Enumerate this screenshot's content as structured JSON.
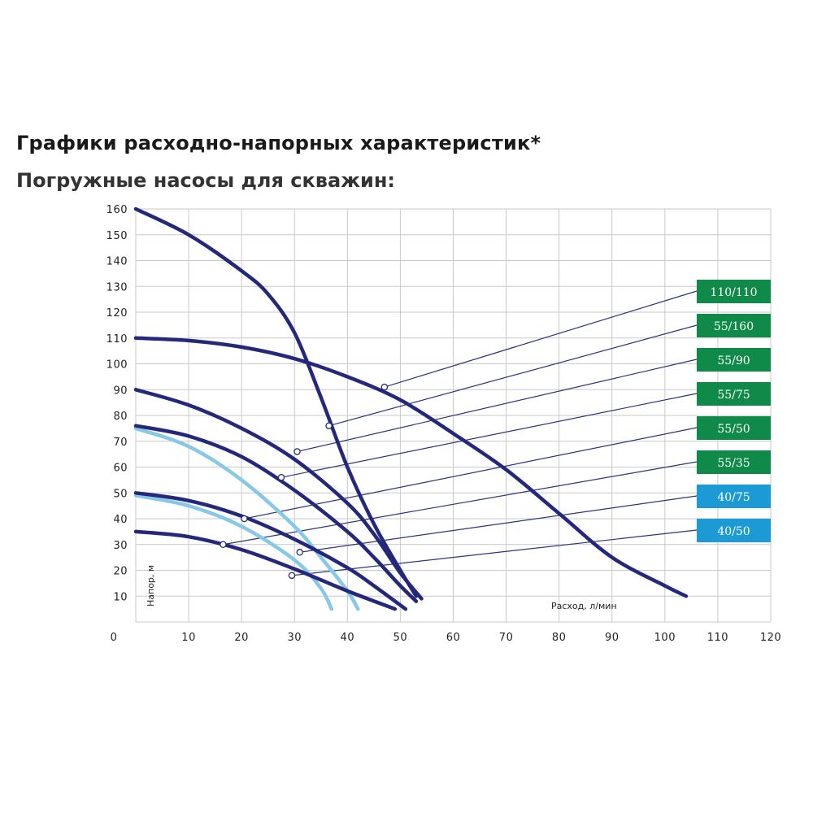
{
  "title": "Графики расходно-напорных характеристик*",
  "subtitle": "Погружные насосы для скважин:",
  "chart_data": {
    "type": "line",
    "xlabel": "Расход, л/мин",
    "ylabel": "Напор, м",
    "xlim": [
      0,
      120
    ],
    "ylim": [
      0,
      160
    ],
    "x_ticks": [
      10,
      20,
      30,
      40,
      50,
      60,
      70,
      80,
      90,
      100,
      110,
      120
    ],
    "y_ticks": [
      10,
      20,
      30,
      40,
      50,
      60,
      70,
      80,
      90,
      100,
      110,
      120,
      130,
      140,
      150,
      160
    ],
    "origin_label": "0",
    "grid": true,
    "colors": {
      "dark": "#24287a",
      "light": "#87c8e6",
      "badge_green": "#108a48",
      "badge_blue": "#1c9ad6",
      "grid": "#c9c9c9",
      "leader": "#2a3480"
    },
    "series": [
      {
        "name": "110/110",
        "color": "dark",
        "badge_color": "badge_green",
        "marker": [
          47,
          91
        ],
        "points": [
          [
            0,
            110
          ],
          [
            10,
            109
          ],
          [
            20,
            106.5
          ],
          [
            30,
            102
          ],
          [
            40,
            95
          ],
          [
            50,
            86
          ],
          [
            60,
            73
          ],
          [
            70,
            59
          ],
          [
            80,
            42
          ],
          [
            90,
            25
          ],
          [
            100,
            14
          ],
          [
            104,
            10
          ]
        ]
      },
      {
        "name": "55/160",
        "color": "dark",
        "badge_color": "badge_green",
        "marker": [
          36.5,
          76
        ],
        "points": [
          [
            0,
            160
          ],
          [
            10,
            150
          ],
          [
            20,
            136
          ],
          [
            25,
            127
          ],
          [
            30,
            112
          ],
          [
            35,
            87
          ],
          [
            40,
            60
          ],
          [
            45,
            38
          ],
          [
            50,
            20
          ],
          [
            53,
            10
          ]
        ]
      },
      {
        "name": "55/90",
        "color": "dark",
        "badge_color": "badge_green",
        "marker": [
          30.5,
          66
        ],
        "points": [
          [
            0,
            90
          ],
          [
            10,
            84
          ],
          [
            20,
            75
          ],
          [
            30,
            63
          ],
          [
            40,
            46
          ],
          [
            45,
            34
          ],
          [
            50,
            19
          ],
          [
            54,
            9
          ]
        ]
      },
      {
        "name": "55/75",
        "color": "dark",
        "badge_color": "badge_green",
        "marker": [
          27.5,
          56
        ],
        "points": [
          [
            0,
            76
          ],
          [
            10,
            72
          ],
          [
            20,
            64
          ],
          [
            30,
            51
          ],
          [
            40,
            35
          ],
          [
            45,
            25
          ],
          [
            50,
            14
          ],
          [
            53,
            8
          ]
        ]
      },
      {
        "name": "55/50",
        "color": "dark",
        "badge_color": "badge_green",
        "marker": [
          20.5,
          40
        ],
        "points": [
          [
            0,
            50
          ],
          [
            10,
            47
          ],
          [
            20,
            41
          ],
          [
            30,
            32
          ],
          [
            40,
            21
          ],
          [
            45,
            14
          ],
          [
            51,
            5
          ]
        ]
      },
      {
        "name": "55/35",
        "color": "dark",
        "badge_color": "badge_green",
        "marker": [
          16.5,
          30
        ],
        "points": [
          [
            0,
            35
          ],
          [
            10,
            33
          ],
          [
            20,
            28
          ],
          [
            30,
            20.5
          ],
          [
            40,
            12
          ],
          [
            49,
            5
          ]
        ]
      },
      {
        "name": "40/75",
        "color": "light",
        "badge_color": "badge_blue",
        "marker": [
          31,
          27
        ],
        "points": [
          [
            0,
            75
          ],
          [
            10,
            68
          ],
          [
            20,
            55
          ],
          [
            30,
            37
          ],
          [
            35,
            25
          ],
          [
            40,
            12
          ],
          [
            42,
            5
          ]
        ]
      },
      {
        "name": "40/50",
        "color": "light",
        "badge_color": "badge_blue",
        "marker": [
          29.5,
          18
        ],
        "points": [
          [
            0,
            49
          ],
          [
            10,
            45
          ],
          [
            20,
            37
          ],
          [
            30,
            24
          ],
          [
            35,
            13
          ],
          [
            37,
            5
          ]
        ]
      }
    ]
  }
}
